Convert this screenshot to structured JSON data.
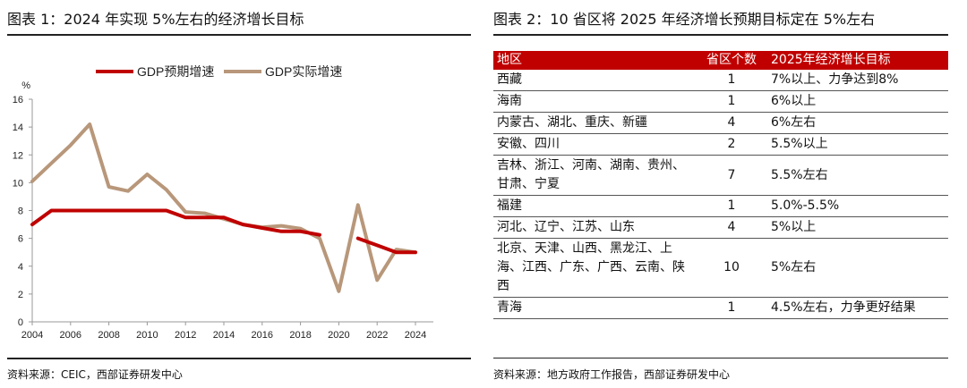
{
  "left_panel": {
    "title": "图表 1：2024 年实现 5%左右的经济增长目标",
    "source": "资料来源：CEIC，西部证券研发中心"
  },
  "right_panel": {
    "title": "图表 2：10 省区将 2025 年经济增长预期目标定在 5%左右",
    "source": "资料来源：地方政府工作报告，西部证券研发中心"
  },
  "chart_data": {
    "type": "line",
    "title": "",
    "xlabel": "",
    "ylabel": "%",
    "xlim": [
      2004,
      2024
    ],
    "ylim": [
      0,
      16
    ],
    "xticks": [
      2004,
      2006,
      2008,
      2010,
      2012,
      2014,
      2016,
      2018,
      2020,
      2022,
      2024
    ],
    "yticks": [
      0,
      2,
      4,
      6,
      8,
      10,
      12,
      14,
      16
    ],
    "legend_position": "top",
    "series": [
      {
        "name": "GDP预期增速",
        "color": "#c00000",
        "segments": [
          {
            "x": [
              2004,
              2005,
              2006,
              2007,
              2008,
              2009,
              2010,
              2011,
              2012,
              2013,
              2014,
              2015,
              2016,
              2017,
              2018,
              2019
            ],
            "y": [
              7,
              8,
              8,
              8,
              8,
              8,
              8,
              8,
              7.5,
              7.5,
              7.5,
              7,
              6.75,
              6.5,
              6.5,
              6.25
            ]
          },
          {
            "x": [
              2021,
              2022,
              2023,
              2024
            ],
            "y": [
              6,
              5.5,
              5,
              5
            ]
          }
        ]
      },
      {
        "name": "GDP实际增速",
        "color": "#b8977a",
        "segments": [
          {
            "x": [
              2004,
              2005,
              2006,
              2007,
              2008,
              2009,
              2010,
              2011,
              2012,
              2013,
              2014,
              2015,
              2016,
              2017,
              2018,
              2019,
              2020,
              2021,
              2022,
              2023,
              2024
            ],
            "y": [
              10.1,
              11.4,
              12.7,
              14.2,
              9.7,
              9.4,
              10.6,
              9.5,
              7.9,
              7.8,
              7.4,
              7.0,
              6.8,
              6.9,
              6.7,
              6.0,
              2.2,
              8.4,
              3.0,
              5.2,
              5.0
            ]
          }
        ]
      }
    ]
  },
  "table": {
    "headers": [
      "地区",
      "省区个数",
      "2025年经济增长目标"
    ],
    "rows": [
      {
        "region": "西藏",
        "count": "1",
        "target": "7%以上、力争达到8%"
      },
      {
        "region": "海南",
        "count": "1",
        "target": "6%以上"
      },
      {
        "region": "内蒙古、湖北、重庆、新疆",
        "count": "4",
        "target": "6%左右"
      },
      {
        "region": "安徽、四川",
        "count": "2",
        "target": "5.5%以上"
      },
      {
        "region": "吉林、浙江、河南、湖南、贵州、甘肃、宁夏",
        "count": "7",
        "target": "5.5%左右"
      },
      {
        "region": "福建",
        "count": "1",
        "target": "5.0%-5.5%"
      },
      {
        "region": "河北、辽宁、江苏、山东",
        "count": "4",
        "target": "5%以上"
      },
      {
        "region": "北京、天津、山西、黑龙江、上海、江西、广东、广西、云南、陕西",
        "count": "10",
        "target": "5%左右"
      },
      {
        "region": "青海",
        "count": "1",
        "target": "4.5%左右，力争更好结果"
      }
    ]
  }
}
